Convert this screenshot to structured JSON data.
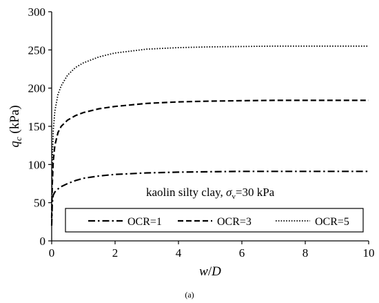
{
  "chart_data": {
    "type": "line",
    "xlabel": {
      "main": "w",
      "slash": "/",
      "sub": "D"
    },
    "ylabel": {
      "main": "q",
      "sub": "c",
      "unit": " (kPa)"
    },
    "xlim": [
      0,
      10
    ],
    "ylim": [
      0,
      300
    ],
    "x_ticks": [
      "0",
      "2",
      "4",
      "6",
      "8",
      "10"
    ],
    "y_ticks": [
      "0",
      "50",
      "100",
      "150",
      "200",
      "250",
      "300"
    ],
    "grid": false,
    "annotation": {
      "text": "kaolin silty clay, ",
      "sym": "σ",
      "sub": "v",
      "rest": "=30 kPa"
    },
    "caption": "(a)",
    "legend_position": "bottom",
    "series": [
      {
        "name": "OCR=1",
        "style": "dash-dot",
        "x": [
          0,
          0.02,
          0.05,
          0.1,
          0.2,
          0.3,
          0.5,
          0.75,
          1,
          1.5,
          2,
          3,
          4,
          5,
          6,
          7,
          8,
          9,
          10
        ],
        "y": [
          20,
          50,
          60,
          64,
          68,
          71,
          75,
          79,
          82,
          85,
          87,
          89,
          90,
          90.5,
          91,
          91,
          91,
          91,
          91
        ]
      },
      {
        "name": "OCR=3",
        "style": "dashed",
        "x": [
          0,
          0.02,
          0.05,
          0.1,
          0.2,
          0.3,
          0.5,
          0.75,
          1,
          1.5,
          2,
          3,
          4,
          5,
          6,
          7,
          8,
          9,
          10
        ],
        "y": [
          30,
          75,
          105,
          125,
          142,
          150,
          158,
          164,
          168,
          173,
          176,
          180,
          182,
          183,
          183.5,
          184,
          184,
          184,
          184
        ]
      },
      {
        "name": "OCR=5",
        "style": "dotted",
        "x": [
          0,
          0.02,
          0.05,
          0.1,
          0.2,
          0.3,
          0.5,
          0.75,
          1,
          1.5,
          2,
          3,
          4,
          5,
          6,
          7,
          8,
          9,
          10
        ],
        "y": [
          40,
          105,
          145,
          170,
          192,
          203,
          217,
          227,
          233,
          241,
          246,
          251,
          253,
          254,
          254.5,
          255,
          255,
          255,
          255
        ]
      }
    ]
  }
}
